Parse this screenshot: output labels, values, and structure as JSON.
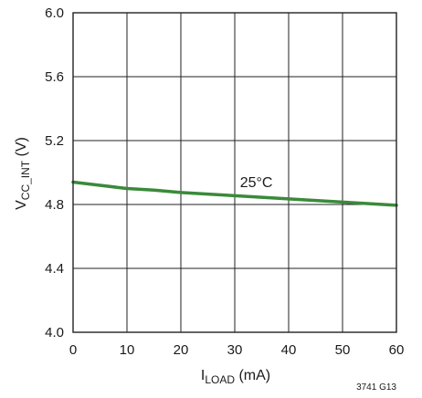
{
  "chart_data": {
    "type": "line",
    "title": "",
    "xlabel": {
      "main": "I",
      "sub": "LOAD",
      "unit": " (mA)"
    },
    "ylabel": {
      "main": "V",
      "sub": "CC_INT",
      "unit": " (V)"
    },
    "xlim": [
      0,
      60
    ],
    "ylim": [
      4.0,
      6.0
    ],
    "x_ticks": [
      0,
      10,
      20,
      30,
      40,
      50,
      60
    ],
    "y_ticks": [
      4.0,
      4.4,
      4.8,
      5.2,
      5.6,
      6.0
    ],
    "x_tick_labels": [
      "0",
      "10",
      "20",
      "30",
      "40",
      "50",
      "60"
    ],
    "y_tick_labels": [
      "4.0",
      "4.4",
      "4.8",
      "5.2",
      "5.6",
      "6.0"
    ],
    "grid": true,
    "series": [
      {
        "name": "25°C",
        "color": "#3a8a3a",
        "x": [
          0,
          5,
          10,
          15,
          20,
          25,
          30,
          35,
          40,
          45,
          50,
          55,
          60
        ],
        "values": [
          4.94,
          4.92,
          4.9,
          4.89,
          4.875,
          4.865,
          4.855,
          4.845,
          4.835,
          4.825,
          4.815,
          4.805,
          4.795
        ]
      }
    ],
    "annotations": [
      {
        "text": "25°C",
        "x": 34,
        "y": 4.91
      }
    ]
  },
  "figure_note": "3741 G13"
}
